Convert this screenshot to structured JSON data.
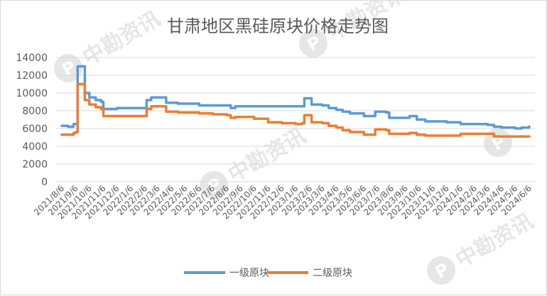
{
  "watermark": {
    "text": "中勘资讯",
    "badge_letter": "P"
  },
  "colors": {
    "series1": "#5b9bd5",
    "series2": "#ed7d31",
    "grid": "#d9d9d9",
    "text": "#595959"
  },
  "chart_data": {
    "type": "line",
    "title": "甘肃地区黑硅原块价格走势图",
    "xlabel": "",
    "ylabel": "",
    "ylim": [
      0,
      14000
    ],
    "yticks": [
      0,
      2000,
      4000,
      6000,
      8000,
      10000,
      12000,
      14000
    ],
    "grid": "horizontal",
    "legend_position": "bottom",
    "x_tick_labels": [
      "2021/8/6",
      "2021/9/6",
      "2021/10/6",
      "2021/11/6",
      "2021/12/6",
      "2022/1/6",
      "2022/2/6",
      "2022/3/6",
      "2022/4/6",
      "2022/5/6",
      "2022/6/6",
      "2022/7/6",
      "2022/8/6",
      "2022/9/6",
      "2022/10/6",
      "2022/11/6",
      "2022/12/6",
      "2023/1/6",
      "2023/2/6",
      "2023/3/6",
      "2023/4/6",
      "2023/5/6",
      "2023/6/6",
      "2023/7/6",
      "2023/8/6",
      "2023/9/6",
      "2023/10/6",
      "2023/11/6",
      "2023/12/6",
      "2024/1/6",
      "2024/2/6",
      "2024/3/6",
      "2024/4/6",
      "2024/5/6",
      "2024/6/6"
    ],
    "x_range": [
      "2021/8/6",
      "2024/6/6"
    ],
    "series": [
      {
        "name": "一级原块",
        "color": "#5b9bd5",
        "points": [
          [
            "2021/8/6",
            6300
          ],
          [
            "2021/8/20",
            6200
          ],
          [
            "2021/9/1",
            6500
          ],
          [
            "2021/9/6",
            6500
          ],
          [
            "2021/9/10",
            13000
          ],
          [
            "2021/9/23",
            13000
          ],
          [
            "2021/9/26",
            10000
          ],
          [
            "2021/10/6",
            9500
          ],
          [
            "2021/10/20",
            9200
          ],
          [
            "2021/11/1",
            9000
          ],
          [
            "2021/11/6",
            8200
          ],
          [
            "2021/12/6",
            8300
          ],
          [
            "2022/1/6",
            8300
          ],
          [
            "2022/2/6",
            8300
          ],
          [
            "2022/2/10",
            9200
          ],
          [
            "2022/2/20",
            9500
          ],
          [
            "2022/3/15",
            9500
          ],
          [
            "2022/3/25",
            8900
          ],
          [
            "2022/4/20",
            8800
          ],
          [
            "2022/5/15",
            8800
          ],
          [
            "2022/6/6",
            8600
          ],
          [
            "2022/7/6",
            8600
          ],
          [
            "2022/8/6",
            8600
          ],
          [
            "2022/8/15",
            8300
          ],
          [
            "2022/8/25",
            8500
          ],
          [
            "2022/10/6",
            8500
          ],
          [
            "2022/11/6",
            8500
          ],
          [
            "2022/12/6",
            8500
          ],
          [
            "2023/1/6",
            8500
          ],
          [
            "2023/1/20",
            8500
          ],
          [
            "2023/1/25",
            9400
          ],
          [
            "2023/2/6",
            9400
          ],
          [
            "2023/2/10",
            8700
          ],
          [
            "2023/3/6",
            8600
          ],
          [
            "2023/3/20",
            8300
          ],
          [
            "2023/4/6",
            8100
          ],
          [
            "2023/4/20",
            7900
          ],
          [
            "2023/5/6",
            7700
          ],
          [
            "2023/6/6",
            7400
          ],
          [
            "2023/6/25",
            7400
          ],
          [
            "2023/7/1",
            7900
          ],
          [
            "2023/7/25",
            7800
          ],
          [
            "2023/8/1",
            7200
          ],
          [
            "2023/9/6",
            7200
          ],
          [
            "2023/9/15",
            7400
          ],
          [
            "2023/10/1",
            7000
          ],
          [
            "2023/10/20",
            6800
          ],
          [
            "2023/11/6",
            6800
          ],
          [
            "2023/12/6",
            6700
          ],
          [
            "2024/1/6",
            6500
          ],
          [
            "2024/2/6",
            6500
          ],
          [
            "2024/3/6",
            6400
          ],
          [
            "2024/3/20",
            6200
          ],
          [
            "2024/4/6",
            6100
          ],
          [
            "2024/5/6",
            6000
          ],
          [
            "2024/5/20",
            6100
          ],
          [
            "2024/6/6",
            6200
          ]
        ]
      },
      {
        "name": "二级原块",
        "color": "#ed7d31",
        "points": [
          [
            "2021/8/6",
            5300
          ],
          [
            "2021/8/20",
            5300
          ],
          [
            "2021/9/1",
            5500
          ],
          [
            "2021/9/6",
            5600
          ],
          [
            "2021/9/10",
            11000
          ],
          [
            "2021/9/23",
            11000
          ],
          [
            "2021/9/26",
            9200
          ],
          [
            "2021/10/6",
            8700
          ],
          [
            "2021/10/20",
            8400
          ],
          [
            "2021/11/1",
            8200
          ],
          [
            "2021/11/6",
            7400
          ],
          [
            "2021/12/6",
            7400
          ],
          [
            "2022/1/6",
            7400
          ],
          [
            "2022/2/6",
            7400
          ],
          [
            "2022/2/10",
            8200
          ],
          [
            "2022/2/20",
            8500
          ],
          [
            "2022/3/15",
            8500
          ],
          [
            "2022/3/25",
            7900
          ],
          [
            "2022/4/20",
            7800
          ],
          [
            "2022/5/15",
            7800
          ],
          [
            "2022/6/6",
            7700
          ],
          [
            "2022/7/6",
            7600
          ],
          [
            "2022/8/6",
            7500
          ],
          [
            "2022/8/15",
            7200
          ],
          [
            "2022/8/25",
            7300
          ],
          [
            "2022/10/6",
            7100
          ],
          [
            "2022/11/6",
            6700
          ],
          [
            "2022/12/6",
            6600
          ],
          [
            "2023/1/6",
            6500
          ],
          [
            "2023/1/20",
            6600
          ],
          [
            "2023/1/25",
            7500
          ],
          [
            "2023/2/6",
            7500
          ],
          [
            "2023/2/10",
            6700
          ],
          [
            "2023/3/6",
            6600
          ],
          [
            "2023/3/20",
            6300
          ],
          [
            "2023/4/6",
            6100
          ],
          [
            "2023/4/20",
            5800
          ],
          [
            "2023/5/6",
            5600
          ],
          [
            "2023/6/6",
            5300
          ],
          [
            "2023/6/25",
            5300
          ],
          [
            "2023/7/1",
            5900
          ],
          [
            "2023/7/25",
            5800
          ],
          [
            "2023/8/1",
            5400
          ],
          [
            "2023/9/6",
            5400
          ],
          [
            "2023/9/15",
            5500
          ],
          [
            "2023/10/1",
            5300
          ],
          [
            "2023/10/20",
            5200
          ],
          [
            "2023/11/6",
            5200
          ],
          [
            "2023/12/6",
            5200
          ],
          [
            "2024/1/6",
            5400
          ],
          [
            "2024/2/6",
            5400
          ],
          [
            "2024/3/6",
            5400
          ],
          [
            "2024/3/20",
            5100
          ],
          [
            "2024/4/6",
            5100
          ],
          [
            "2024/5/6",
            5100
          ],
          [
            "2024/5/20",
            5100
          ],
          [
            "2024/6/6",
            5100
          ]
        ]
      }
    ]
  }
}
